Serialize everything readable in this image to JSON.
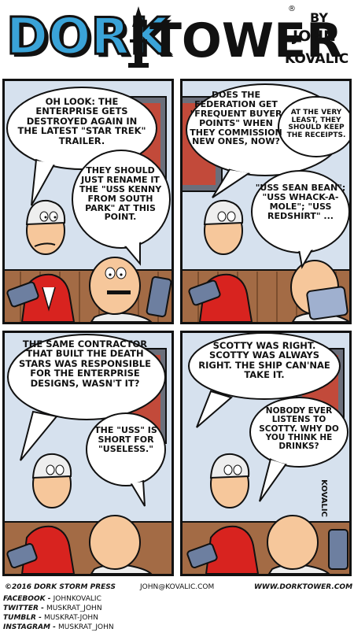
{
  "title": {
    "word1": "DORK",
    "word2": "TOWER",
    "byline_by": "BY",
    "byline_first": "JOHN",
    "byline_last": "KOVALIC",
    "registered": "®"
  },
  "panels": [
    {
      "balloons": [
        "OH LOOK: THE ENTERPRISE GETS DESTROYED AGAIN IN THE LATEST \"STAR TREK\" TRAILER.",
        "THEY SHOULD JUST RENAME IT THE \"USS KENNY FROM SOUTH PARK\" AT THIS POINT."
      ]
    },
    {
      "balloons": [
        "DOES THE FEDERATION GET \"FREQUENT BUYER POINTS\" WHEN THEY COMMISSION NEW ONES, NOW?",
        "AT THE VERY LEAST, THEY SHOULD KEEP THE RECEIPTS.",
        "\"USS SEAN BEAN\"; \"USS WHACK-A-MOLE\"; \"USS REDSHIRT\" ..."
      ]
    },
    {
      "balloons": [
        "THE SAME CONTRACTOR THAT BUILT THE DEATH STARS WAS RESPONSIBLE FOR THE ENTERPRISE DESIGNS, WASN'T IT?",
        "THE \"USS\" IS SHORT FOR \"USELESS.\""
      ]
    },
    {
      "balloons": [
        "SCOTTY WAS RIGHT. SCOTTY WAS ALWAYS RIGHT. THE SHIP CAN'NAE TAKE IT.",
        "NOBODY EVER LISTENS TO SCOTTY. WHY DO YOU THINK HE DRINKS?"
      ],
      "signature": "KOVALIC"
    }
  ],
  "footer": {
    "copyright": "©2016 DORK STORM PRESS",
    "email": "JOHN@KOVALIC.COM",
    "website": "WWW.DORKTOWER.COM",
    "social": [
      {
        "network": "FACEBOOK",
        "handle": "JOHNKOVALIC"
      },
      {
        "network": "TWITTER",
        "handle": "MUSKRAT_JOHN"
      },
      {
        "network": "TUMBLR",
        "handle": "MUSKRAT-JOHN"
      },
      {
        "network": "INSTAGRAM",
        "handle": "MUSKRAT_JOHN"
      }
    ]
  },
  "colors": {
    "title_blue": "#3aa3d8",
    "shirt_red": "#d8231f",
    "skin": "#f6c79b",
    "wall": "#d6e1ee",
    "wainscot": "#a36b45",
    "phone": "#6d7fa0"
  }
}
